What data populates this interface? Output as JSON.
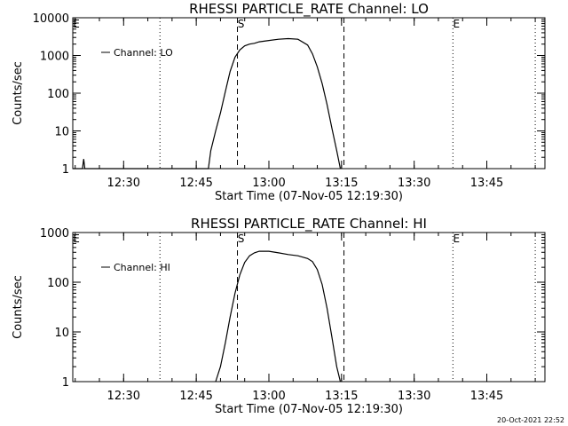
{
  "chart_data": [
    {
      "type": "line",
      "title": "RHESSI PARTICLE_RATE Channel: LO",
      "xlabel": "Start Time (07-Nov-05 12:19:30)",
      "ylabel": "Counts/sec",
      "yscale": "log",
      "ylim": [
        1,
        10000
      ],
      "y_ticks": [
        "1",
        "10",
        "100",
        "1000",
        "10000"
      ],
      "x_ticks": [
        "12:30",
        "12:45",
        "13:00",
        "13:15",
        "13:30",
        "13:45"
      ],
      "x_range": [
        "12:19:30",
        "13:57:00"
      ],
      "legend": "top-left",
      "grid": false,
      "series": [
        {
          "name": "Channel: LO",
          "x": [
            "12:19:30",
            "12:21:30",
            "12:21:45",
            "12:22:00",
            "12:22:15",
            "12:22:30",
            "12:47:30",
            "12:48:00",
            "12:49:00",
            "12:50:00",
            "12:51:00",
            "12:52:00",
            "12:53:00",
            "12:54:00",
            "12:55:00",
            "12:56:00",
            "12:57:00",
            "12:58:00",
            "13:00:00",
            "13:02:00",
            "13:04:00",
            "13:06:00",
            "13:08:00",
            "13:09:00",
            "13:10:00",
            "13:11:00",
            "13:12:00",
            "13:13:00",
            "13:14:00",
            "13:14:45"
          ],
          "values": [
            1,
            1,
            1.8,
            1,
            1,
            1,
            1,
            3,
            10,
            30,
            110,
            380,
            900,
            1400,
            1800,
            2000,
            2100,
            2300,
            2500,
            2700,
            2800,
            2700,
            1900,
            1100,
            500,
            180,
            50,
            12,
            3,
            1
          ]
        }
      ],
      "markers": [
        {
          "label": "S",
          "time": "12:53:30",
          "style": "dashed"
        },
        {
          "label": "",
          "time": "13:15:30",
          "style": "dashed"
        },
        {
          "label": "",
          "time": "12:37:30",
          "style": "dotted"
        },
        {
          "label": "E",
          "time": "13:38:00",
          "style": "dotted"
        },
        {
          "label": "",
          "time": "13:55:00",
          "style": "dotted"
        },
        {
          "label": "E",
          "time": "12:19:30",
          "style": "dotted"
        }
      ]
    },
    {
      "type": "line",
      "title": "RHESSI PARTICLE_RATE Channel: HI",
      "xlabel": "Start Time (07-Nov-05 12:19:30)",
      "ylabel": "Counts/sec",
      "yscale": "log",
      "ylim": [
        1,
        1000
      ],
      "y_ticks": [
        "1",
        "10",
        "100",
        "1000"
      ],
      "x_ticks": [
        "12:30",
        "12:45",
        "13:00",
        "13:15",
        "13:30",
        "13:45"
      ],
      "x_range": [
        "12:19:30",
        "13:57:00"
      ],
      "legend": "top-left",
      "grid": false,
      "series": [
        {
          "name": "Channel: HI",
          "x": [
            "12:49:00",
            "12:50:00",
            "12:51:00",
            "12:52:00",
            "12:53:00",
            "12:54:00",
            "12:55:00",
            "12:56:00",
            "12:57:00",
            "12:58:00",
            "13:00:00",
            "13:02:00",
            "13:04:00",
            "13:06:00",
            "13:08:00",
            "13:09:00",
            "13:10:00",
            "13:11:00",
            "13:12:00",
            "13:13:00",
            "13:14:00",
            "13:14:45"
          ],
          "values": [
            1,
            2,
            6,
            20,
            60,
            140,
            250,
            340,
            390,
            420,
            420,
            390,
            360,
            340,
            300,
            260,
            180,
            90,
            30,
            8,
            2,
            1
          ]
        }
      ],
      "markers": [
        {
          "label": "S",
          "time": "12:53:30",
          "style": "dashed"
        },
        {
          "label": "",
          "time": "13:15:30",
          "style": "dashed"
        },
        {
          "label": "",
          "time": "12:37:30",
          "style": "dotted"
        },
        {
          "label": "E",
          "time": "13:38:00",
          "style": "dotted"
        },
        {
          "label": "",
          "time": "13:55:00",
          "style": "dotted"
        },
        {
          "label": "E",
          "time": "12:19:30",
          "style": "dotted"
        }
      ]
    }
  ],
  "footer": "20-Oct-2021 22:52"
}
